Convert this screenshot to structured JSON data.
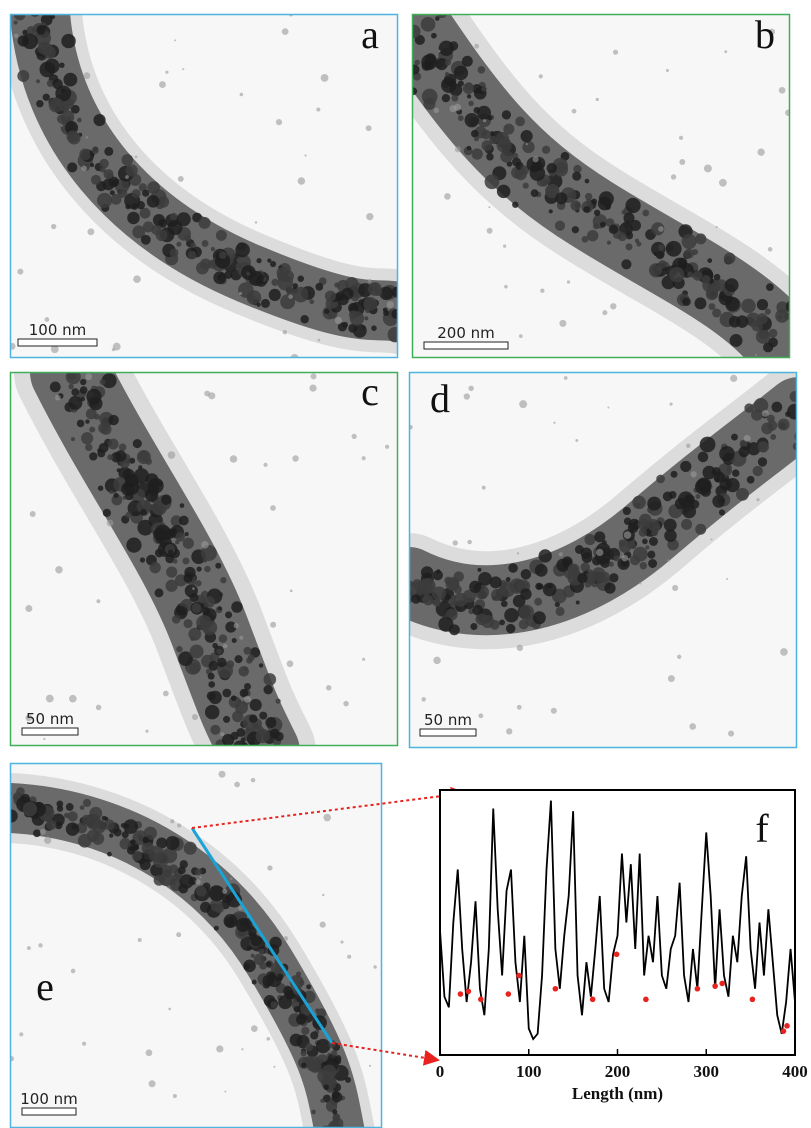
{
  "panels": [
    {
      "label": "a",
      "scale_bar": "100 nm"
    },
    {
      "label": "b",
      "scale_bar": "200 nm"
    },
    {
      "label": "c",
      "scale_bar": "50 nm"
    },
    {
      "label": "d",
      "scale_bar": "50 nm"
    },
    {
      "label": "e",
      "scale_bar": "100 nm"
    }
  ],
  "chart_data": {
    "type": "line",
    "panel_label": "f",
    "x_label": "Length (nm)",
    "x": [
      0,
      5,
      10,
      15,
      20,
      25,
      30,
      35,
      40,
      45,
      50,
      55,
      60,
      65,
      70,
      75,
      80,
      85,
      90,
      95,
      100,
      105,
      110,
      115,
      120,
      125,
      130,
      135,
      140,
      145,
      150,
      155,
      160,
      165,
      170,
      175,
      180,
      185,
      190,
      195,
      200,
      205,
      210,
      215,
      220,
      225,
      230,
      235,
      240,
      245,
      250,
      255,
      260,
      265,
      270,
      275,
      280,
      285,
      290,
      295,
      300,
      305,
      310,
      315,
      320,
      325,
      330,
      335,
      340,
      345,
      350,
      355,
      360,
      365,
      370,
      375,
      380,
      385,
      390,
      395,
      400
    ],
    "series": [
      {
        "color": "#000000",
        "values": [
          47,
          22,
          18,
          50,
          70,
          40,
          20,
          35,
          58,
          25,
          15,
          40,
          93,
          55,
          30,
          62,
          70,
          35,
          20,
          45,
          10,
          6,
          8,
          30,
          70,
          96,
          40,
          25,
          45,
          60,
          92,
          30,
          15,
          35,
          22,
          40,
          60,
          25,
          20,
          38,
          45,
          76,
          50,
          72,
          40,
          76,
          30,
          45,
          35,
          60,
          30,
          25,
          40,
          45,
          65,
          30,
          20,
          40,
          25,
          55,
          84,
          60,
          25,
          55,
          30,
          22,
          45,
          35,
          60,
          75,
          40,
          25,
          50,
          30,
          55,
          35,
          15,
          8,
          20,
          40,
          20
        ]
      },
      {
        "color": "#e8231f",
        "x": [
          23,
          32,
          46,
          77,
          89,
          130,
          172,
          199,
          232,
          290,
          310,
          318,
          352,
          387,
          391
        ],
        "values": [
          23,
          24,
          21,
          23,
          30,
          25,
          21,
          38,
          21,
          25,
          26,
          27,
          21,
          9,
          11
        ]
      }
    ],
    "xlim": [
      0,
      400
    ],
    "xticks": [
      0,
      100,
      200,
      300,
      400
    ],
    "ylim": [
      0,
      100
    ]
  }
}
